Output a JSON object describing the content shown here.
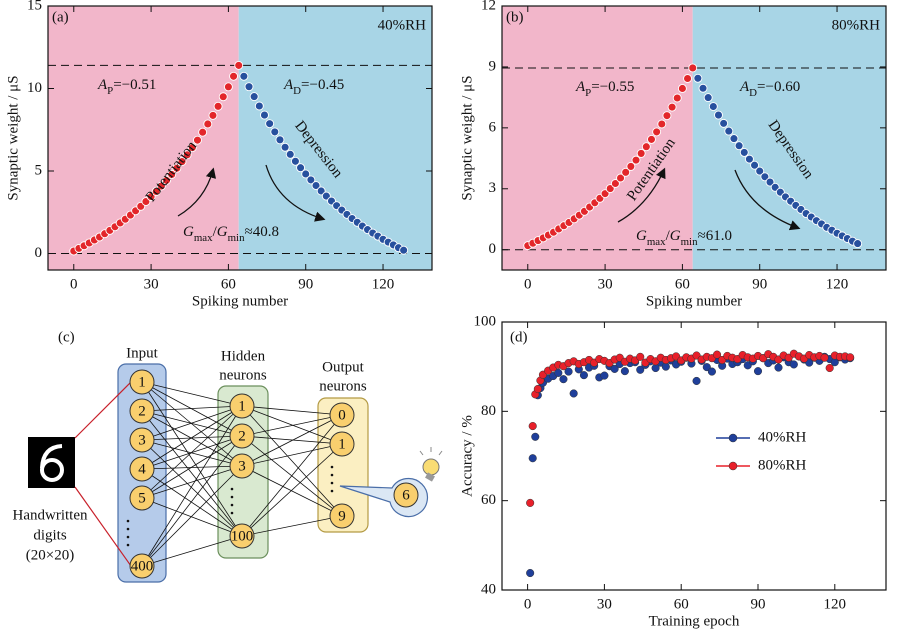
{
  "chart_data": [
    {
      "type": "scatter",
      "label": "(a)",
      "condition": "40%RH",
      "xlabel": "Spiking number",
      "ylabel": "Synaptic weight / μS",
      "xlim": [
        -10,
        139
      ],
      "ylim": [
        -1,
        15
      ],
      "xticks": [
        0,
        30,
        60,
        90,
        120
      ],
      "yticks": [
        0,
        5,
        10,
        15
      ],
      "hlines": [
        11.4,
        0
      ],
      "background_colors": [
        "#f2b6ca",
        "#a8d5e6"
      ],
      "ap_label": [
        "A",
        "P",
        "=−0.51"
      ],
      "ad_label": [
        "A",
        "D",
        "=−0.45"
      ],
      "ratio_label": [
        "G",
        "max",
        "/",
        "G",
        "min",
        "≈40.8"
      ],
      "series": [
        {
          "name": "Potentiation",
          "color": "#e3262a",
          "x": [
            0,
            2,
            4,
            6,
            8,
            10,
            12,
            14,
            16,
            18,
            20,
            22,
            24,
            26,
            28,
            30,
            32,
            34,
            36,
            38,
            40,
            42,
            44,
            46,
            48,
            50,
            52,
            54,
            56,
            58,
            60,
            62,
            64
          ],
          "values": [
            0.15,
            0.31,
            0.47,
            0.64,
            0.82,
            1.0,
            1.2,
            1.4,
            1.62,
            1.85,
            2.08,
            2.33,
            2.59,
            2.86,
            3.15,
            3.45,
            3.76,
            4.09,
            4.43,
            4.79,
            5.17,
            5.57,
            5.98,
            6.42,
            6.87,
            7.35,
            7.85,
            8.37,
            8.92,
            9.5,
            10.1,
            10.74,
            11.4
          ]
        },
        {
          "name": "Depression",
          "color": "#27509e",
          "x": [
            66,
            68,
            70,
            72,
            74,
            76,
            78,
            80,
            82,
            84,
            86,
            88,
            90,
            92,
            94,
            96,
            98,
            100,
            102,
            104,
            106,
            108,
            110,
            112,
            114,
            116,
            118,
            120,
            122,
            124,
            126,
            128
          ],
          "values": [
            10.74,
            10.11,
            9.51,
            8.94,
            8.39,
            7.87,
            7.37,
            6.89,
            6.44,
            6.01,
            5.59,
            5.2,
            4.82,
            4.46,
            4.12,
            3.79,
            3.48,
            3.18,
            2.9,
            2.63,
            2.37,
            2.12,
            1.89,
            1.66,
            1.45,
            1.24,
            1.05,
            0.86,
            0.69,
            0.52,
            0.35,
            0.2
          ]
        }
      ]
    },
    {
      "type": "scatter",
      "label": "(b)",
      "condition": "80%RH",
      "xlabel": "Spiking number",
      "ylabel": "Synaptic weight / μS",
      "xlim": [
        -10,
        139
      ],
      "ylim": [
        -1,
        12
      ],
      "xticks": [
        0,
        30,
        60,
        90,
        120
      ],
      "yticks": [
        0,
        3,
        6,
        9,
        12
      ],
      "hlines": [
        8.95,
        0
      ],
      "background_colors": [
        "#f2b6ca",
        "#a8d5e6"
      ],
      "ap_label": [
        "A",
        "P",
        "=−0.55"
      ],
      "ad_label": [
        "A",
        "D",
        "=−0.60"
      ],
      "ratio_label": [
        "G",
        "max",
        "/",
        "G",
        "min",
        "≈61.0"
      ],
      "series": [
        {
          "name": "Potentiation",
          "color": "#e3262a",
          "x": [
            0,
            2,
            4,
            6,
            8,
            10,
            12,
            14,
            16,
            18,
            20,
            22,
            24,
            26,
            28,
            30,
            32,
            34,
            36,
            38,
            40,
            42,
            44,
            46,
            48,
            50,
            52,
            54,
            56,
            58,
            60,
            62,
            64
          ],
          "values": [
            0.2,
            0.32,
            0.45,
            0.58,
            0.72,
            0.86,
            1.02,
            1.18,
            1.34,
            1.52,
            1.7,
            1.89,
            2.1,
            2.31,
            2.53,
            2.76,
            3.01,
            3.26,
            3.53,
            3.81,
            4.1,
            4.41,
            4.74,
            5.07,
            5.43,
            5.8,
            6.19,
            6.6,
            7.02,
            7.47,
            7.94,
            8.43,
            8.95
          ]
        },
        {
          "name": "Depression",
          "color": "#27509e",
          "x": [
            66,
            68,
            70,
            72,
            74,
            76,
            78,
            80,
            82,
            84,
            86,
            88,
            90,
            92,
            94,
            96,
            98,
            100,
            102,
            104,
            106,
            108,
            110,
            112,
            114,
            116,
            118,
            120,
            122,
            124,
            126,
            128
          ],
          "values": [
            8.44,
            7.95,
            7.49,
            7.05,
            6.63,
            6.22,
            5.84,
            5.47,
            5.12,
            4.79,
            4.46,
            4.16,
            3.87,
            3.59,
            3.33,
            3.07,
            2.83,
            2.6,
            2.39,
            2.18,
            1.98,
            1.78,
            1.61,
            1.43,
            1.27,
            1.1,
            0.96,
            0.81,
            0.68,
            0.55,
            0.42,
            0.3
          ]
        }
      ]
    },
    {
      "type": "scatter",
      "label": "(d)",
      "xlabel": "Training epoch",
      "ylabel": "Accuracy / %",
      "xlim": [
        -10,
        140
      ],
      "ylim": [
        40,
        100
      ],
      "xticks": [
        0,
        30,
        60,
        90,
        120
      ],
      "yticks": [
        40,
        60,
        80,
        100
      ],
      "legend_position": "center right",
      "x": [
        1,
        2,
        3,
        4,
        5,
        6,
        8,
        10,
        12,
        14,
        16,
        18,
        20,
        22,
        24,
        26,
        28,
        30,
        32,
        34,
        36,
        38,
        40,
        42,
        44,
        46,
        48,
        50,
        52,
        54,
        56,
        58,
        60,
        62,
        64,
        66,
        68,
        70,
        72,
        74,
        76,
        78,
        80,
        82,
        84,
        86,
        88,
        90,
        92,
        94,
        96,
        98,
        100,
        102,
        104,
        106,
        108,
        110,
        112,
        114,
        116,
        118,
        120,
        122,
        124,
        126
      ],
      "series": [
        {
          "name": "40%RH",
          "color": "#1f3f9a",
          "values": [
            43.8,
            69.5,
            74.3,
            83.6,
            85.2,
            86.4,
            87.3,
            87.9,
            88.6,
            87.2,
            88.9,
            84.0,
            89.4,
            88.1,
            89.8,
            90.2,
            87.6,
            88.0,
            90.1,
            89.5,
            90.6,
            89.0,
            90.8,
            91.0,
            89.3,
            90.4,
            91.2,
            89.7,
            90.9,
            90.0,
            91.4,
            90.5,
            91.1,
            92.0,
            90.7,
            86.8,
            91.3,
            89.9,
            88.9,
            91.5,
            90.2,
            91.8,
            90.6,
            91.0,
            91.7,
            90.3,
            91.2,
            89.0,
            91.9,
            90.8,
            91.4,
            89.8,
            92.1,
            91.0,
            90.5,
            92.3,
            91.6,
            90.9,
            92.0,
            91.3,
            92.2,
            91.7,
            91.0,
            92.1,
            91.6,
            91.9
          ]
        },
        {
          "name": "80%RH",
          "color": "#e8202a",
          "values": [
            59.5,
            76.7,
            83.8,
            85.0,
            86.9,
            88.2,
            89.1,
            89.8,
            90.4,
            90.1,
            90.8,
            91.2,
            90.6,
            91.0,
            91.5,
            90.9,
            91.7,
            91.3,
            90.8,
            91.6,
            92.0,
            91.1,
            91.8,
            91.4,
            92.2,
            90.9,
            91.7,
            91.2,
            92.0,
            91.5,
            91.9,
            92.3,
            91.4,
            92.1,
            91.8,
            92.5,
            91.6,
            92.2,
            91.9,
            92.7,
            91.5,
            92.4,
            92.0,
            91.7,
            92.6,
            92.1,
            91.8,
            92.4,
            91.9,
            92.8,
            92.2,
            91.6,
            92.5,
            92.0,
            92.9,
            92.3,
            91.8,
            92.6,
            92.1,
            92.4,
            92.0,
            89.7,
            92.5,
            92.2,
            92.3,
            92.1
          ]
        }
      ]
    }
  ],
  "diagram": {
    "label": "(c)",
    "input": {
      "title": "Input",
      "nodes": [
        "1",
        "2",
        "3",
        "4",
        "5",
        "400"
      ]
    },
    "hidden": {
      "title": [
        "Hidden",
        "neurons"
      ],
      "nodes": [
        "1",
        "2",
        "3",
        "100"
      ]
    },
    "output": {
      "title": [
        "Output",
        "neurons"
      ],
      "nodes": [
        "0",
        "1",
        "9"
      ]
    },
    "result": "6",
    "caption": [
      "Handwritten",
      "digits",
      "(20×20)"
    ]
  }
}
